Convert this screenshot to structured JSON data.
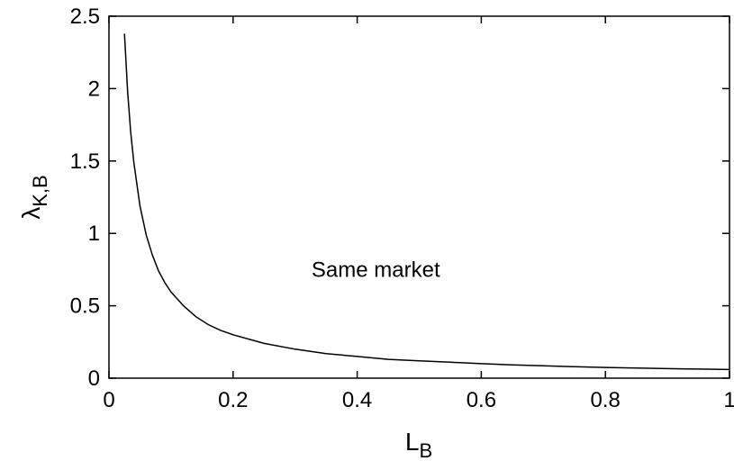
{
  "chart_data": {
    "type": "line",
    "title": "",
    "xlabel": "L",
    "xlabel_sub": "B",
    "ylabel": "λ",
    "ylabel_sub": "K,B",
    "xlim": [
      0,
      1
    ],
    "ylim": [
      0,
      2.5
    ],
    "xticks": [
      "0",
      "0.2",
      "0.4",
      "0.6",
      "0.8",
      "1"
    ],
    "yticks": [
      "0",
      "0.5",
      "1",
      "1.5",
      "2",
      "2.5"
    ],
    "grid": false,
    "legend": "none",
    "annotations": [
      {
        "text": "Same market",
        "x": 0.43,
        "y": 0.7
      }
    ],
    "series": [
      {
        "color": "#000000",
        "x": [
          0.025,
          0.03,
          0.035,
          0.04,
          0.05,
          0.06,
          0.07,
          0.08,
          0.09,
          0.1,
          0.12,
          0.14,
          0.16,
          0.18,
          0.2,
          0.25,
          0.3,
          0.35,
          0.4,
          0.45,
          0.5,
          0.55,
          0.6,
          0.65,
          0.7,
          0.75,
          0.8,
          0.85,
          0.9,
          0.95,
          1.0
        ],
        "y": [
          2.38,
          1.98,
          1.7,
          1.49,
          1.19,
          0.99,
          0.85,
          0.74,
          0.66,
          0.595,
          0.5,
          0.425,
          0.37,
          0.33,
          0.3,
          0.24,
          0.2,
          0.17,
          0.15,
          0.13,
          0.12,
          0.11,
          0.1,
          0.092,
          0.085,
          0.079,
          0.074,
          0.07,
          0.066,
          0.063,
          0.06
        ]
      }
    ]
  }
}
